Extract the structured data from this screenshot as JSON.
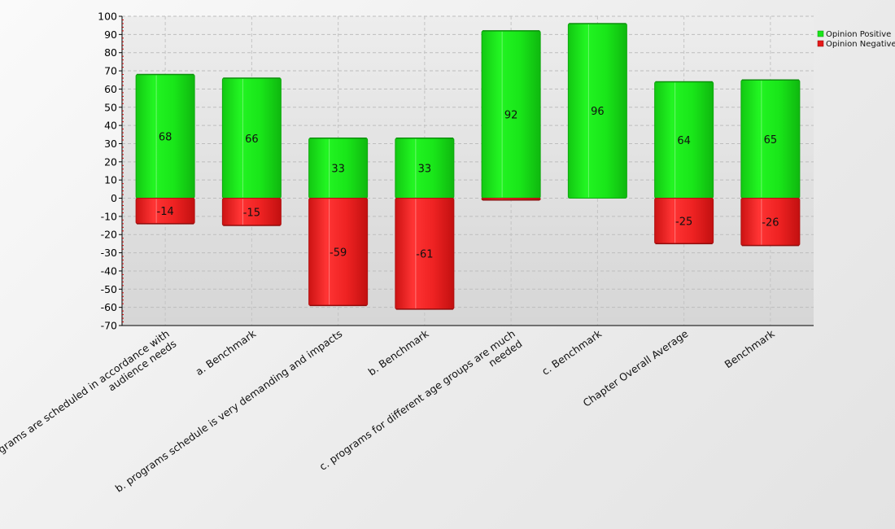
{
  "chart_data": {
    "type": "bar",
    "stacked": true,
    "categories": [
      "a. programs are scheduled in accordance with audience needs",
      "a. Benchmark",
      "b. programs schedule is very demanding and impacts",
      "b. Benchmark",
      "c. programs for different age groups are much needed",
      "c. Benchmark",
      "Chapter Overall Average",
      "Benchmark"
    ],
    "category_lines": [
      [
        "a. programs are scheduled in accordance with",
        "audience needs"
      ],
      [
        "a. Benchmark"
      ],
      [
        "b. programs schedule is very demanding and impacts"
      ],
      [
        "b. Benchmark"
      ],
      [
        "c. programs for different age groups are much",
        "needed"
      ],
      [
        "c. Benchmark"
      ],
      [
        "Chapter Overall Average"
      ],
      [
        "Benchmark"
      ]
    ],
    "series": [
      {
        "name": "Opinion Positive",
        "color": "#19e619",
        "values": [
          68,
          66,
          33,
          33,
          92,
          96,
          64,
          65
        ],
        "labels": [
          "68",
          "66",
          "33",
          "33",
          "92",
          "96",
          "64",
          "65"
        ]
      },
      {
        "name": "Opinion Negative",
        "color": "#e61919",
        "values": [
          -14,
          -15,
          -59,
          -61,
          -1,
          0,
          -25,
          -26
        ],
        "labels": [
          "-14",
          "-15",
          "-59",
          "-61",
          "",
          "",
          "-25",
          "-26"
        ]
      }
    ],
    "ylim": [
      -70,
      100
    ],
    "yticks": [
      "100",
      "90",
      "80",
      "70",
      "60",
      "50",
      "40",
      "30",
      "20",
      "10",
      "0",
      "-10",
      "-20",
      "-30",
      "-40",
      "-50",
      "-60",
      "-70"
    ],
    "grid": true,
    "legend_position": "top-right",
    "title": "",
    "xlabel": "",
    "ylabel": ""
  }
}
